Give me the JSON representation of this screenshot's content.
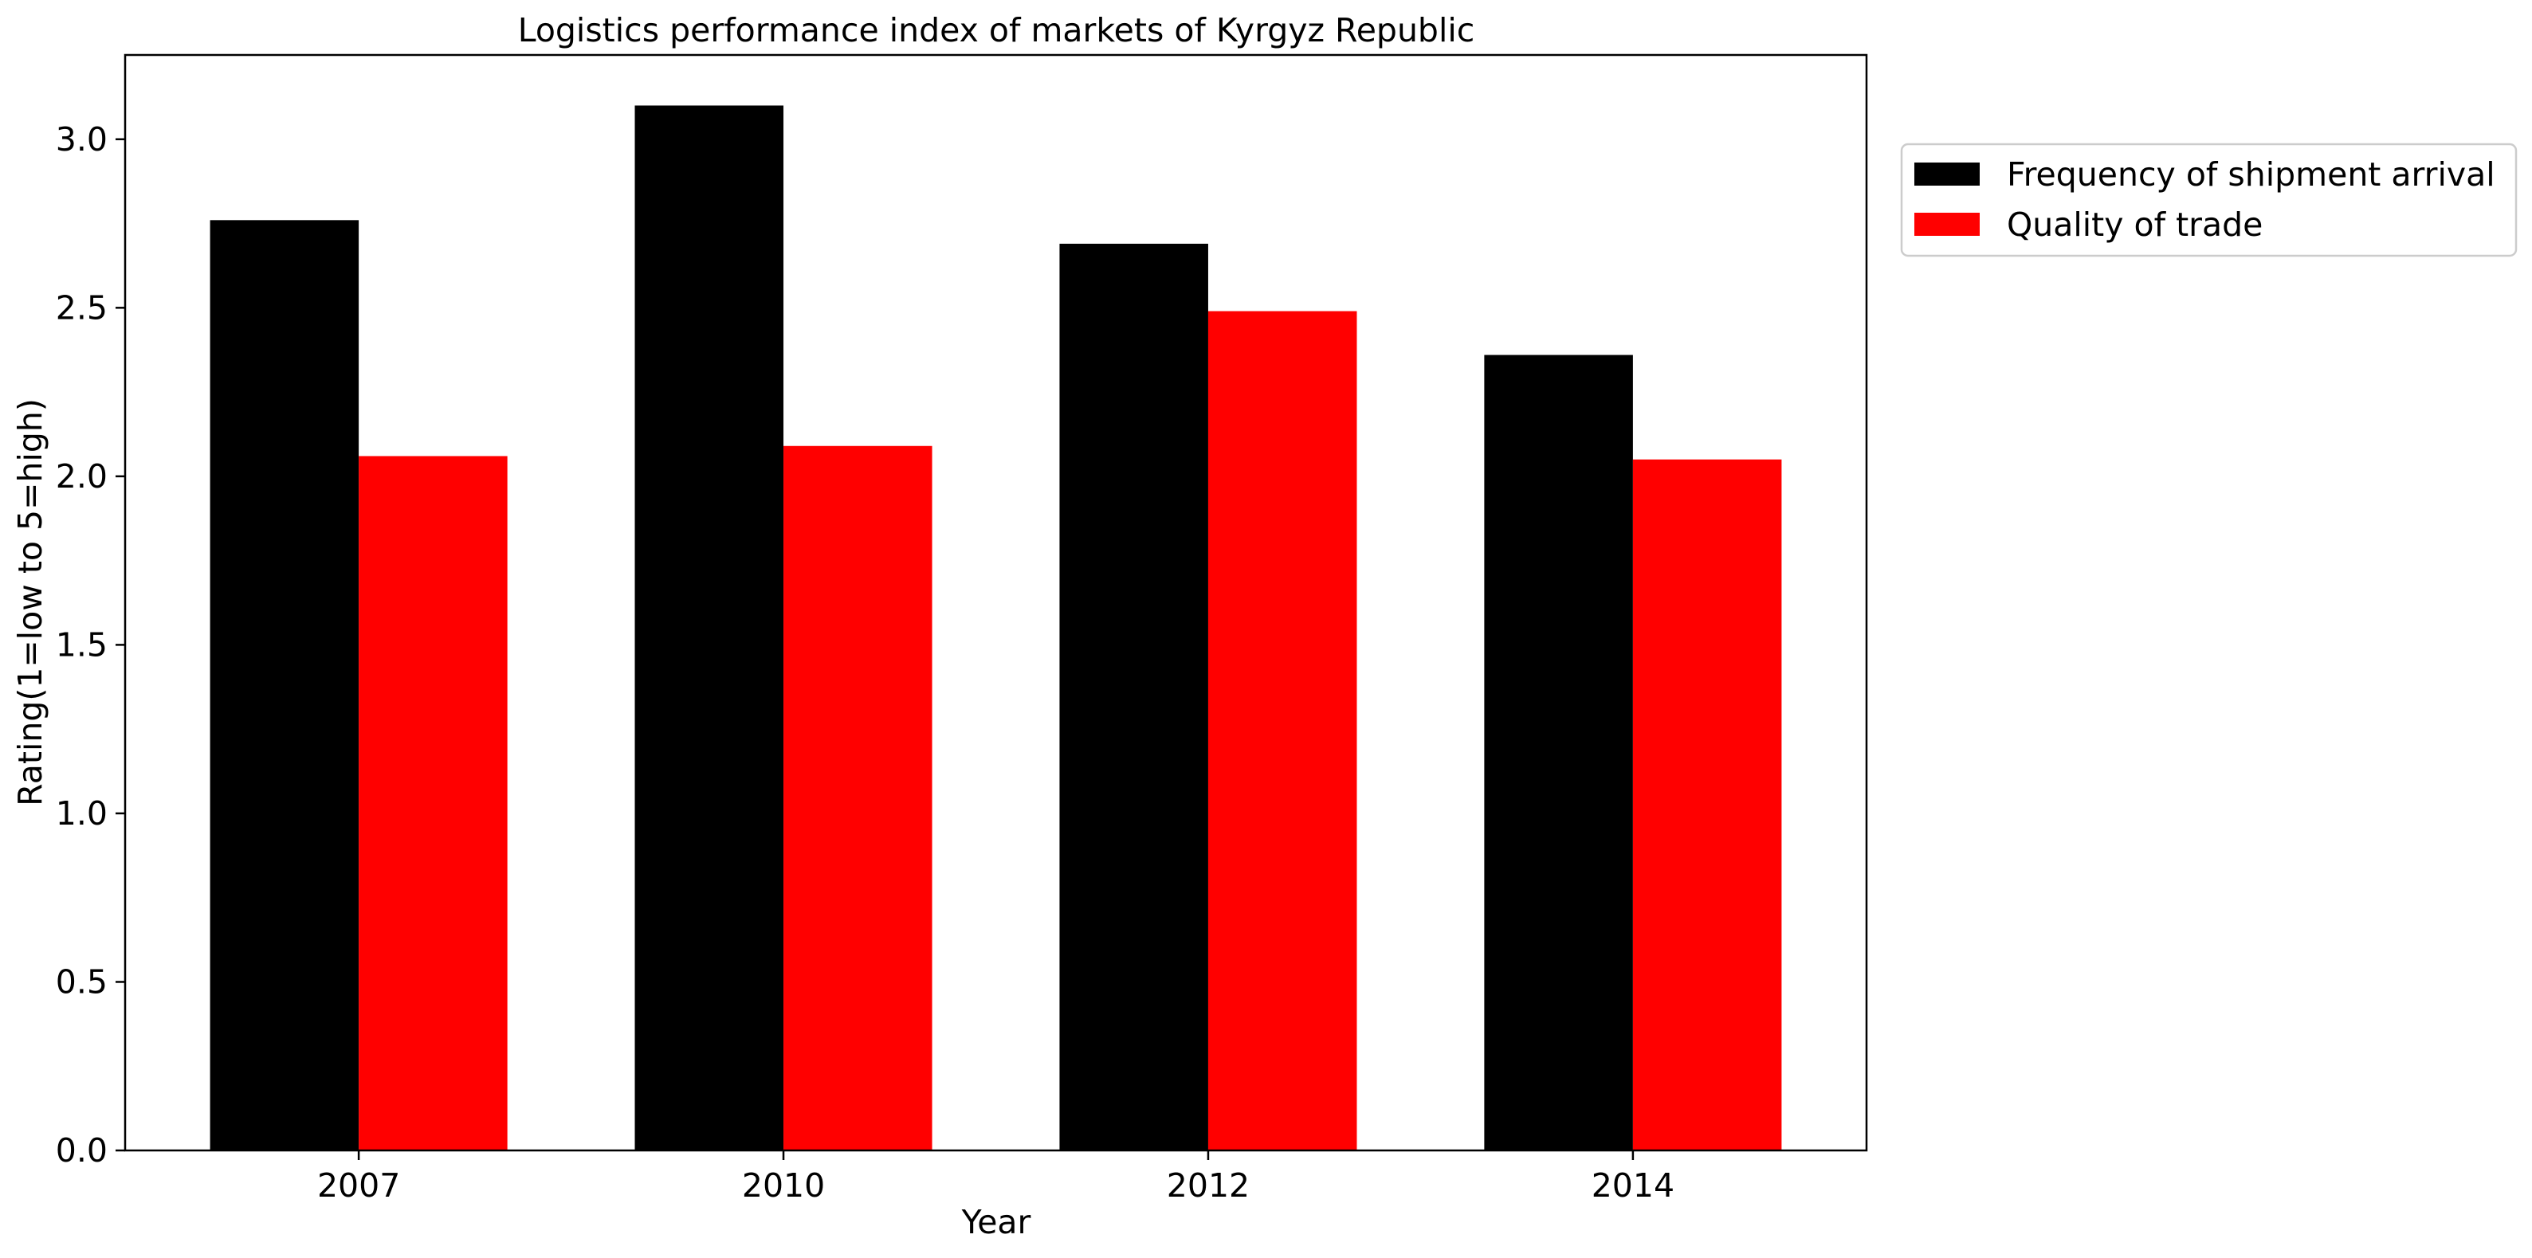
{
  "chart_data": {
    "type": "bar",
    "title": "Logistics performance index of markets of Kyrgyz Republic",
    "xlabel": "Year",
    "ylabel": "Rating(1=low to 5=high)",
    "categories": [
      "2007",
      "2010",
      "2012",
      "2014"
    ],
    "series": [
      {
        "name": "Frequency of shipment arrival",
        "color": "#000000",
        "values": [
          2.76,
          3.1,
          2.69,
          2.36
        ]
      },
      {
        "name": "Quality of trade",
        "color": "#ff0000",
        "values": [
          2.06,
          2.09,
          2.49,
          2.05
        ]
      }
    ],
    "ylim": [
      0,
      3.25
    ],
    "yticks": [
      "0.0",
      "0.5",
      "1.0",
      "1.5",
      "2.0",
      "2.5",
      "3.0"
    ],
    "grid": false,
    "legend_position": "outside-upper-right"
  }
}
